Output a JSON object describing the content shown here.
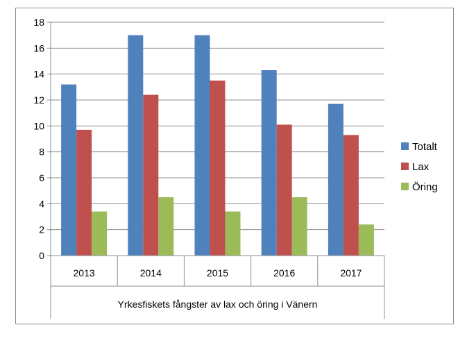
{
  "chart_data": {
    "type": "bar",
    "categories": [
      "2013",
      "2014",
      "2015",
      "2016",
      "2017"
    ],
    "series": [
      {
        "name": "Totalt",
        "values": [
          13.2,
          17.0,
          17.0,
          14.3,
          11.7
        ],
        "color": "#4f81bd"
      },
      {
        "name": "Lax",
        "values": [
          9.7,
          12.4,
          13.5,
          10.1,
          9.3
        ],
        "color": "#c0504d"
      },
      {
        "name": "Öring",
        "values": [
          3.4,
          4.5,
          3.4,
          4.5,
          2.4
        ],
        "color": "#9bbb59"
      }
    ],
    "y_ticks": [
      "0",
      "2",
      "4",
      "6",
      "8",
      "10",
      "12",
      "14",
      "16",
      "18"
    ],
    "ylim": [
      0,
      18
    ],
    "xgroup_label": "Yrkesfiskets fångster av lax och öring i Vänern",
    "title": "",
    "xlabel": "",
    "ylabel": "",
    "grid": true,
    "legend_position": "right"
  }
}
